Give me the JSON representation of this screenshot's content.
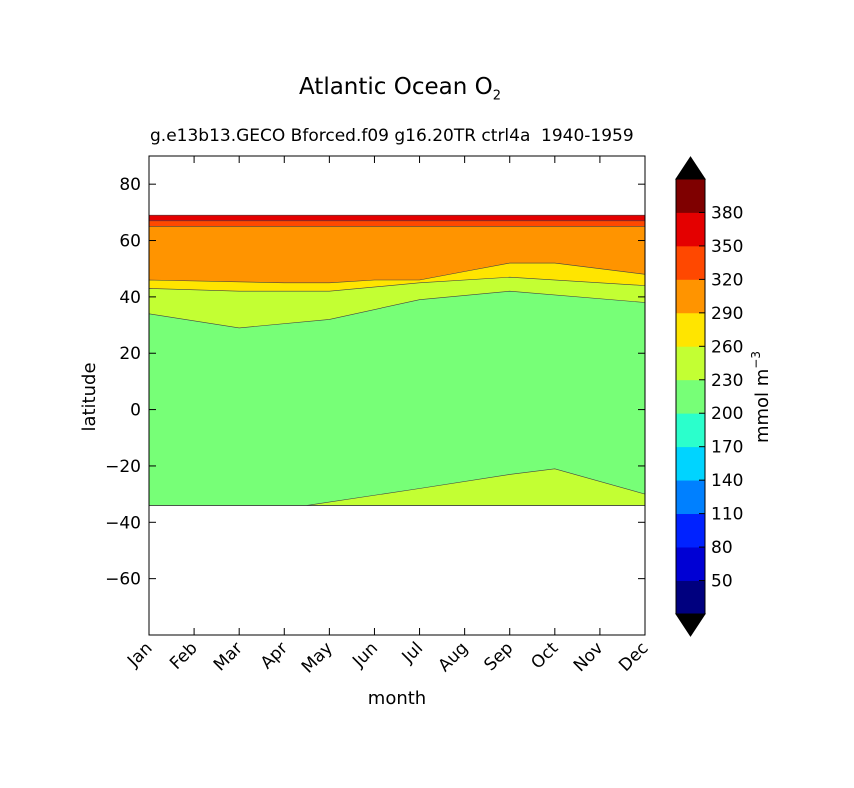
{
  "chart_data": {
    "type": "contourf",
    "title": "Atlantic Ocean O",
    "title_subscript": "2",
    "subtitle": "g.e13b13.GECO Bforced.f09 g16.20TR ctrl4a",
    "period": "1940-1959",
    "xlabel": "month",
    "ylabel": "latitude",
    "x_categories": [
      "Jan",
      "Feb",
      "Mar",
      "Apr",
      "May",
      "Jun",
      "Jul",
      "Aug",
      "Sep",
      "Oct",
      "Nov",
      "Dec"
    ],
    "y_ticks": [
      "80",
      "60",
      "40",
      "20",
      "0",
      "−20",
      "−40",
      "−60"
    ],
    "y_tick_values": [
      80,
      60,
      40,
      20,
      0,
      -20,
      -40,
      -60
    ],
    "ylim": [
      -80,
      90
    ],
    "colorbar": {
      "label": "mmol m",
      "label_superscript": "−3",
      "levels": [
        20,
        50,
        80,
        110,
        140,
        170,
        200,
        230,
        260,
        290,
        320,
        350,
        380,
        410
      ],
      "tick_labels": [
        "50",
        "80",
        "110",
        "140",
        "170",
        "200",
        "230",
        "260",
        "290",
        "320",
        "350",
        "380"
      ],
      "colors": [
        "#00007f",
        "#0000d4",
        "#0022ff",
        "#0080ff",
        "#00d4ff",
        "#2bffcc",
        "#77ff77",
        "#c3ff33",
        "#ffe500",
        "#ff9400",
        "#ff4800",
        "#e40000",
        "#7f0000"
      ],
      "extend": "both",
      "under_color": "#000000",
      "over_color": "#000000"
    },
    "regions": [
      {
        "range": "260-290",
        "color": "#ffe500",
        "boundary_top": [
          [
            0,
            46
          ],
          [
            3,
            45
          ],
          [
            4,
            45
          ],
          [
            5,
            46
          ],
          [
            6,
            46
          ],
          [
            7,
            49
          ],
          [
            8,
            52
          ],
          [
            9,
            52
          ],
          [
            10,
            50
          ],
          [
            11,
            48
          ]
        ]
      },
      {
        "range": "290-320",
        "color": "#ff9400",
        "boundary_top": [
          [
            0,
            65
          ],
          [
            11,
            65
          ]
        ]
      },
      {
        "range": "320-350",
        "color": "#ff4800",
        "boundary_top": [
          [
            0,
            67
          ],
          [
            11,
            67
          ]
        ]
      },
      {
        "range": "350-380",
        "color": "#e40000",
        "boundary_top": [
          [
            0,
            69
          ],
          [
            11,
            69
          ]
        ]
      },
      {
        "range": "230-260",
        "color": "#c3ff33",
        "boundary_top": [
          [
            0,
            43
          ],
          [
            2,
            42
          ],
          [
            4,
            42
          ],
          [
            6,
            45
          ],
          [
            8,
            47
          ],
          [
            11,
            44
          ]
        ]
      },
      {
        "range": "200-230",
        "color": "#77ff77",
        "boundary_top": [
          [
            0,
            34
          ],
          [
            2,
            29
          ],
          [
            4,
            32
          ],
          [
            6,
            39
          ],
          [
            8,
            42
          ],
          [
            11,
            38
          ]
        ]
      },
      {
        "range": "230-260 (south)",
        "color": "#c3ff33",
        "boundary_top": [
          [
            3.5,
            -34
          ],
          [
            6,
            -28
          ],
          [
            8,
            -23
          ],
          [
            9,
            -21
          ],
          [
            11,
            -30
          ]
        ]
      }
    ],
    "data_lat_range": [
      -34,
      69
    ]
  }
}
